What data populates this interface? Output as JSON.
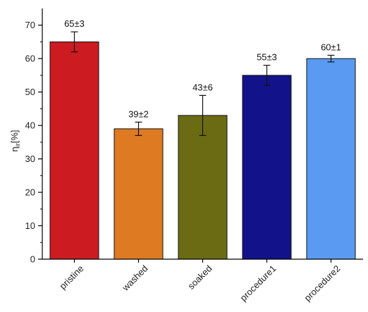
{
  "chart_data": {
    "type": "bar",
    "categories": [
      "pristine",
      "washed",
      "soaked",
      "procedure1",
      "procedure2"
    ],
    "values": [
      65,
      39,
      43,
      55,
      60
    ],
    "errors": [
      3,
      2,
      6,
      3,
      1
    ],
    "data_labels": [
      "65±3",
      "39±2",
      "43±6",
      "55±3",
      "60±1"
    ],
    "colors": [
      "#cc1c22",
      "#de7a22",
      "#6b6b14",
      "#12128a",
      "#5a9af2"
    ],
    "ylabel_main": "η",
    "ylabel_sub": "ir",
    "ylabel_suffix": "[%]",
    "ylim": [
      0,
      75
    ],
    "yticks": [
      0,
      10,
      20,
      30,
      40,
      50,
      60,
      70
    ],
    "grid": false,
    "legend": "none"
  }
}
